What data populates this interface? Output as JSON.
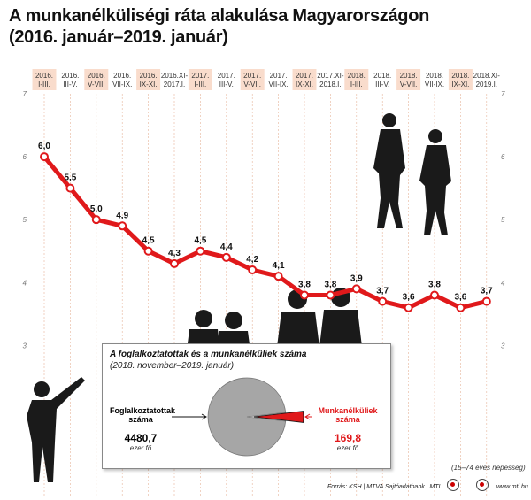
{
  "title_line1": "A munkanélküliségi ráta alakulása Magyarországon",
  "title_line2": "(2016. január–2019. január)",
  "colors": {
    "line": "#e0191b",
    "odd_band": "#f9dccc",
    "even_band": "#ffffff",
    "pie_main": "#a6a6a6",
    "pie_slice": "#e0191b"
  },
  "chart_data": {
    "type": "line",
    "categories": [
      [
        "2016.",
        "I-III."
      ],
      [
        "2016.",
        "III-V."
      ],
      [
        "2016.",
        "V-VII."
      ],
      [
        "2016.",
        "VII-IX."
      ],
      [
        "2016.",
        "IX-XI."
      ],
      [
        "2016.XI-",
        "2017.I."
      ],
      [
        "2017.",
        "I-III."
      ],
      [
        "2017.",
        "III-V."
      ],
      [
        "2017.",
        "V-VII."
      ],
      [
        "2017.",
        "VII-IX."
      ],
      [
        "2017.",
        "IX-XI."
      ],
      [
        "2017.XI-",
        "2018.I."
      ],
      [
        "2018.",
        "I-III."
      ],
      [
        "2018.",
        "III-V."
      ],
      [
        "2018.",
        "V-VII."
      ],
      [
        "2018.",
        "VII-IX."
      ],
      [
        "2018.",
        "IX-XI."
      ],
      [
        "2018.XI-",
        "2019.I."
      ]
    ],
    "values": [
      6.0,
      5.5,
      5.0,
      4.9,
      4.5,
      4.3,
      4.5,
      4.4,
      4.2,
      4.1,
      3.8,
      3.8,
      3.9,
      3.7,
      3.6,
      3.8,
      3.6,
      3.7
    ],
    "value_labels": [
      "6,0",
      "5,5",
      "5,0",
      "4,9",
      "4,5",
      "4,3",
      "4,5",
      "4,4",
      "4,2",
      "4,1",
      "3,8",
      "3,8",
      "3,9",
      "3,7",
      "3,6",
      "3,8",
      "3,6",
      "3,7"
    ],
    "yticks": [
      "7",
      "6",
      "5",
      "4",
      "3"
    ],
    "ylim": [
      2.4,
      7
    ],
    "grid": true
  },
  "inset": {
    "title": "A foglalkoztatottak és a munkanélküliek száma",
    "subtitle": "(2018. november–2019. január)",
    "pie": {
      "type": "pie",
      "values": [
        4480.7,
        169.8
      ]
    },
    "employed": {
      "line1": "Foglalkoztatottak",
      "line2": "száma",
      "value": "4480,7",
      "unit": "ezer fő"
    },
    "unemployed": {
      "line1": "Munkanélküliek",
      "line2": "száma",
      "value": "169,8",
      "unit": "ezer fő"
    }
  },
  "footer": {
    "note": "(15–74 éves népesség)",
    "source": "Forrás: KSH | MTVA Sajtóadatbank | MTI",
    "url": "www.mti.hu"
  }
}
